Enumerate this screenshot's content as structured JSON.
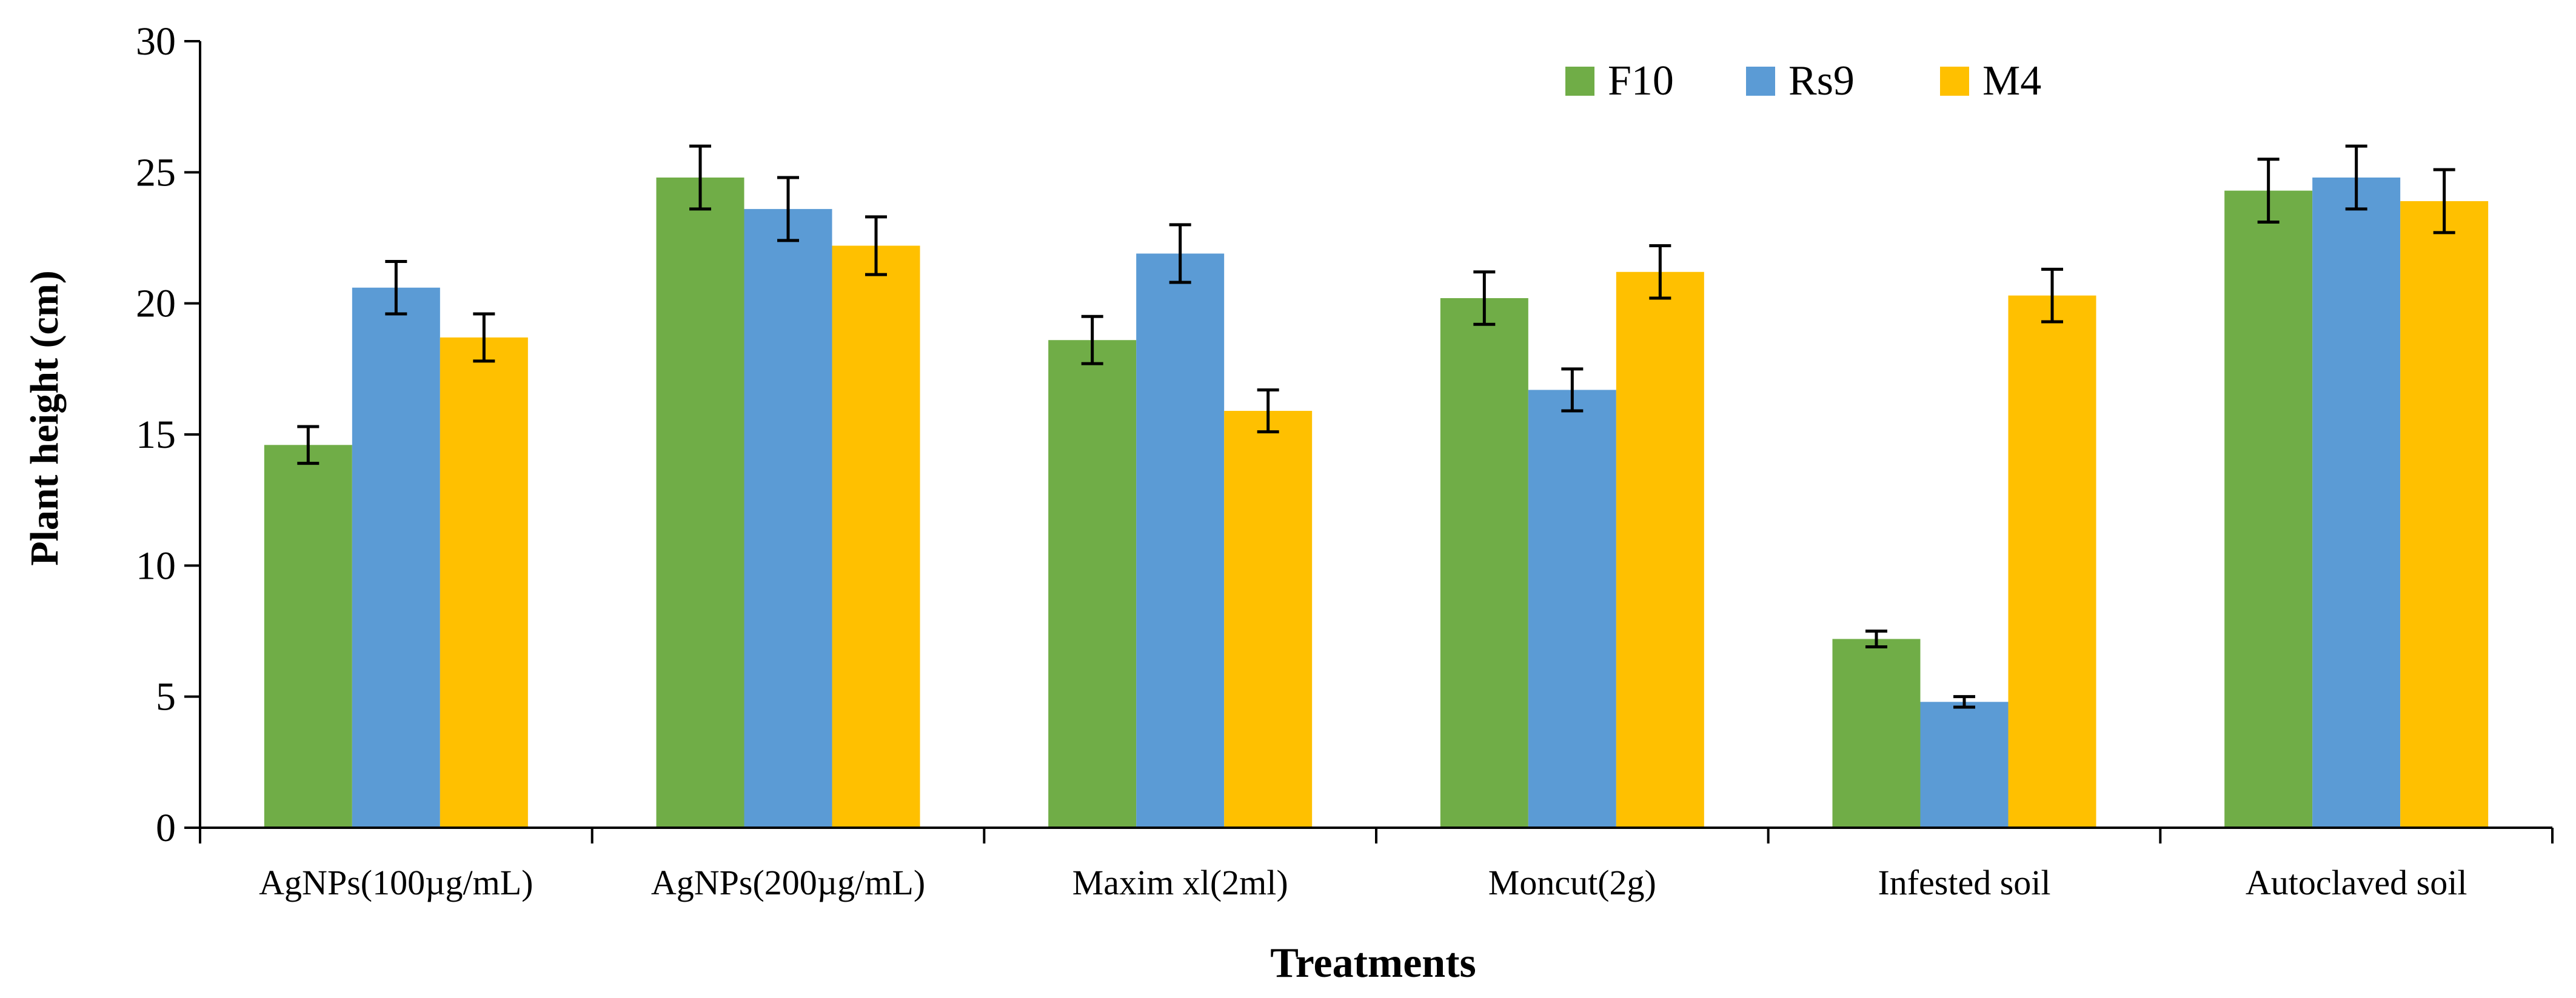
{
  "chart_data": {
    "type": "bar",
    "title": "",
    "xlabel": "Treatments",
    "ylabel": "Plant height (cm)",
    "ylim": [
      0,
      30
    ],
    "yticks": [
      0,
      5,
      10,
      15,
      20,
      25,
      30
    ],
    "grid": false,
    "legend_position": "top-right",
    "categories": [
      "AgNPs(100µg/mL)",
      "AgNPs(200µg/mL)",
      "Maxim xl(2ml)",
      "Moncut(2g)",
      "Infested soil",
      "Autoclaved soil"
    ],
    "series": [
      {
        "name": "F10",
        "color": "#70AD47",
        "values": [
          14.6,
          24.8,
          18.6,
          20.2,
          7.2,
          24.3
        ],
        "errors": [
          0.7,
          1.2,
          0.9,
          1.0,
          0.3,
          1.2
        ]
      },
      {
        "name": "Rs9",
        "color": "#5B9BD5",
        "values": [
          20.6,
          23.6,
          21.9,
          16.7,
          4.8,
          24.8
        ],
        "errors": [
          1.0,
          1.2,
          1.1,
          0.8,
          0.2,
          1.2
        ]
      },
      {
        "name": "M4",
        "color": "#FFC000",
        "values": [
          18.7,
          22.2,
          15.9,
          21.2,
          20.3,
          23.9
        ],
        "errors": [
          0.9,
          1.1,
          0.8,
          1.0,
          1.0,
          1.2
        ]
      }
    ]
  }
}
